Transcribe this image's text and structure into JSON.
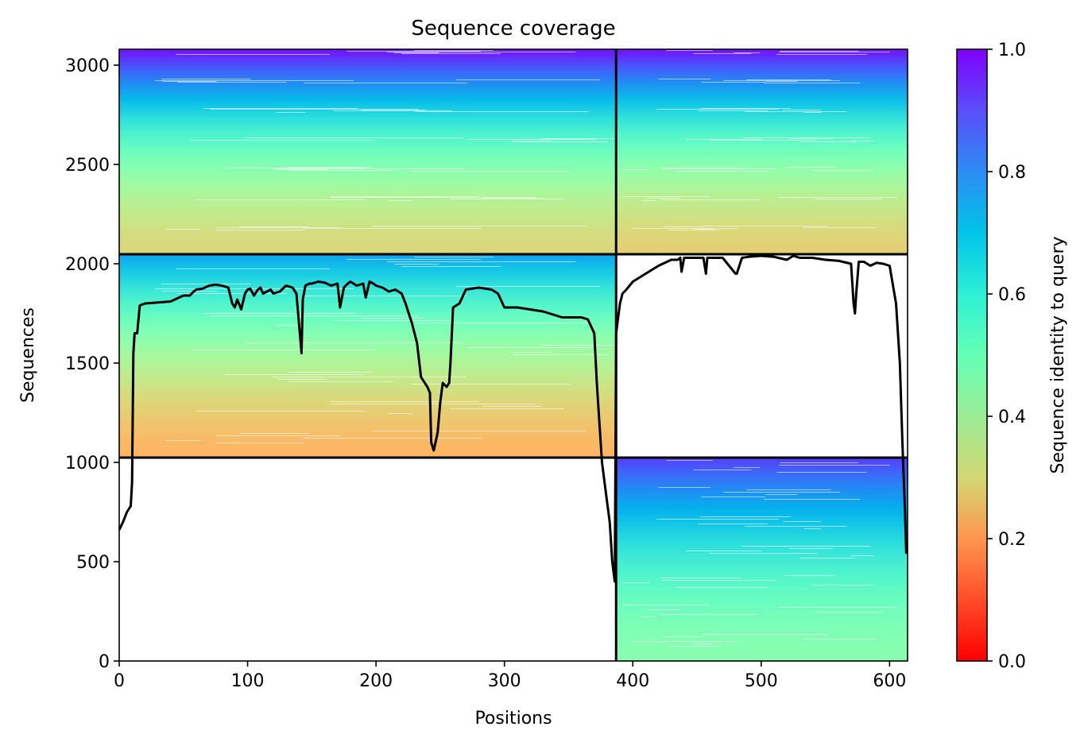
{
  "chart_data": {
    "type": "heatmap",
    "title": "Sequence coverage",
    "xlabel": "Positions",
    "ylabel": "Sequences",
    "xlim": [
      0,
      614
    ],
    "ylim": [
      0,
      3080
    ],
    "x_ticks": [
      0,
      100,
      200,
      300,
      400,
      500,
      600
    ],
    "y_ticks": [
      0,
      500,
      1000,
      1500,
      2000,
      2500,
      3000
    ],
    "colorbar": {
      "label": "Sequence identity to query",
      "range": [
        0.0,
        1.0
      ],
      "ticks": [
        "0.0",
        "0.2",
        "0.4",
        "0.6",
        "0.8",
        "1.0"
      ],
      "colormap": "rainbow_r"
    },
    "divider_x": 387,
    "divider_y": [
      1024,
      2048
    ],
    "blocks": [
      {
        "name": "chain-a-paired",
        "x_range": [
          0,
          387
        ],
        "y_range": [
          2048,
          3080
        ],
        "identity_bottom": 0.32,
        "identity_top": 0.98
      },
      {
        "name": "chain-b-paired",
        "x_range": [
          387,
          614
        ],
        "y_range": [
          2048,
          3080
        ],
        "identity_bottom": 0.3,
        "identity_top": 0.98
      },
      {
        "name": "chain-a-unpaired",
        "x_range": [
          0,
          387
        ],
        "y_range": [
          1024,
          2048
        ],
        "identity_bottom": 0.25,
        "identity_top": 0.78
      },
      {
        "name": "chain-b-unpaired",
        "x_range": [
          387,
          614
        ],
        "y_range": [
          0,
          1024
        ],
        "identity_bottom": 0.48,
        "identity_top": 0.92
      }
    ],
    "coverage_line": {
      "color": "#000000",
      "x": [
        0,
        3,
        6,
        9,
        10,
        11,
        12,
        14,
        16,
        20,
        30,
        40,
        50,
        55,
        58,
        60,
        65,
        70,
        75,
        80,
        85,
        88,
        90,
        92,
        95,
        98,
        100,
        102,
        105,
        108,
        110,
        112,
        115,
        118,
        120,
        125,
        130,
        135,
        138,
        140,
        142,
        143,
        145,
        148,
        150,
        155,
        160,
        165,
        170,
        172,
        175,
        178,
        180,
        185,
        190,
        192,
        195,
        198,
        200,
        205,
        210,
        215,
        220,
        223,
        225,
        228,
        230,
        232,
        235,
        238,
        240,
        242,
        243,
        245,
        248,
        250,
        252,
        255,
        257,
        258,
        260,
        265,
        270,
        280,
        290,
        295,
        300,
        305,
        310,
        320,
        330,
        340,
        345,
        350,
        360,
        365,
        370,
        372,
        374,
        376,
        378,
        380,
        382,
        384,
        386,
        387,
        388,
        390,
        392,
        395,
        400,
        410,
        420,
        430,
        435,
        437,
        438,
        440,
        445,
        450,
        455,
        457,
        458,
        460,
        465,
        470,
        480,
        481,
        485,
        490,
        500,
        510,
        520,
        525,
        530,
        540,
        550,
        560,
        570,
        572,
        573,
        574,
        576,
        580,
        585,
        590,
        595,
        600,
        605,
        608,
        610,
        612,
        613
      ],
      "y": [
        660,
        700,
        750,
        780,
        900,
        1550,
        1650,
        1650,
        1790,
        1800,
        1805,
        1810,
        1840,
        1840,
        1860,
        1870,
        1875,
        1890,
        1895,
        1890,
        1880,
        1800,
        1780,
        1820,
        1770,
        1850,
        1870,
        1875,
        1840,
        1870,
        1880,
        1850,
        1860,
        1870,
        1850,
        1860,
        1890,
        1880,
        1850,
        1700,
        1550,
        1820,
        1890,
        1900,
        1900,
        1910,
        1905,
        1890,
        1900,
        1780,
        1880,
        1900,
        1910,
        1890,
        1900,
        1830,
        1910,
        1900,
        1890,
        1880,
        1860,
        1870,
        1850,
        1800,
        1760,
        1700,
        1650,
        1600,
        1430,
        1400,
        1380,
        1350,
        1100,
        1060,
        1150,
        1300,
        1400,
        1380,
        1400,
        1500,
        1780,
        1800,
        1870,
        1880,
        1870,
        1850,
        1780,
        1780,
        1780,
        1770,
        1760,
        1740,
        1730,
        1730,
        1730,
        1720,
        1650,
        1400,
        1200,
        1000,
        900,
        800,
        700,
        500,
        400,
        1650,
        1700,
        1800,
        1850,
        1870,
        1910,
        1950,
        1990,
        2020,
        2020,
        2030,
        1960,
        2030,
        2030,
        2030,
        2030,
        1950,
        2030,
        2030,
        2030,
        2030,
        1950,
        1950,
        2030,
        2035,
        2040,
        2035,
        2020,
        2040,
        2030,
        2030,
        2020,
        2015,
        2000,
        1800,
        1750,
        1850,
        2010,
        2010,
        1990,
        2005,
        2000,
        1990,
        1800,
        1500,
        1100,
        750,
        540
      ]
    }
  }
}
